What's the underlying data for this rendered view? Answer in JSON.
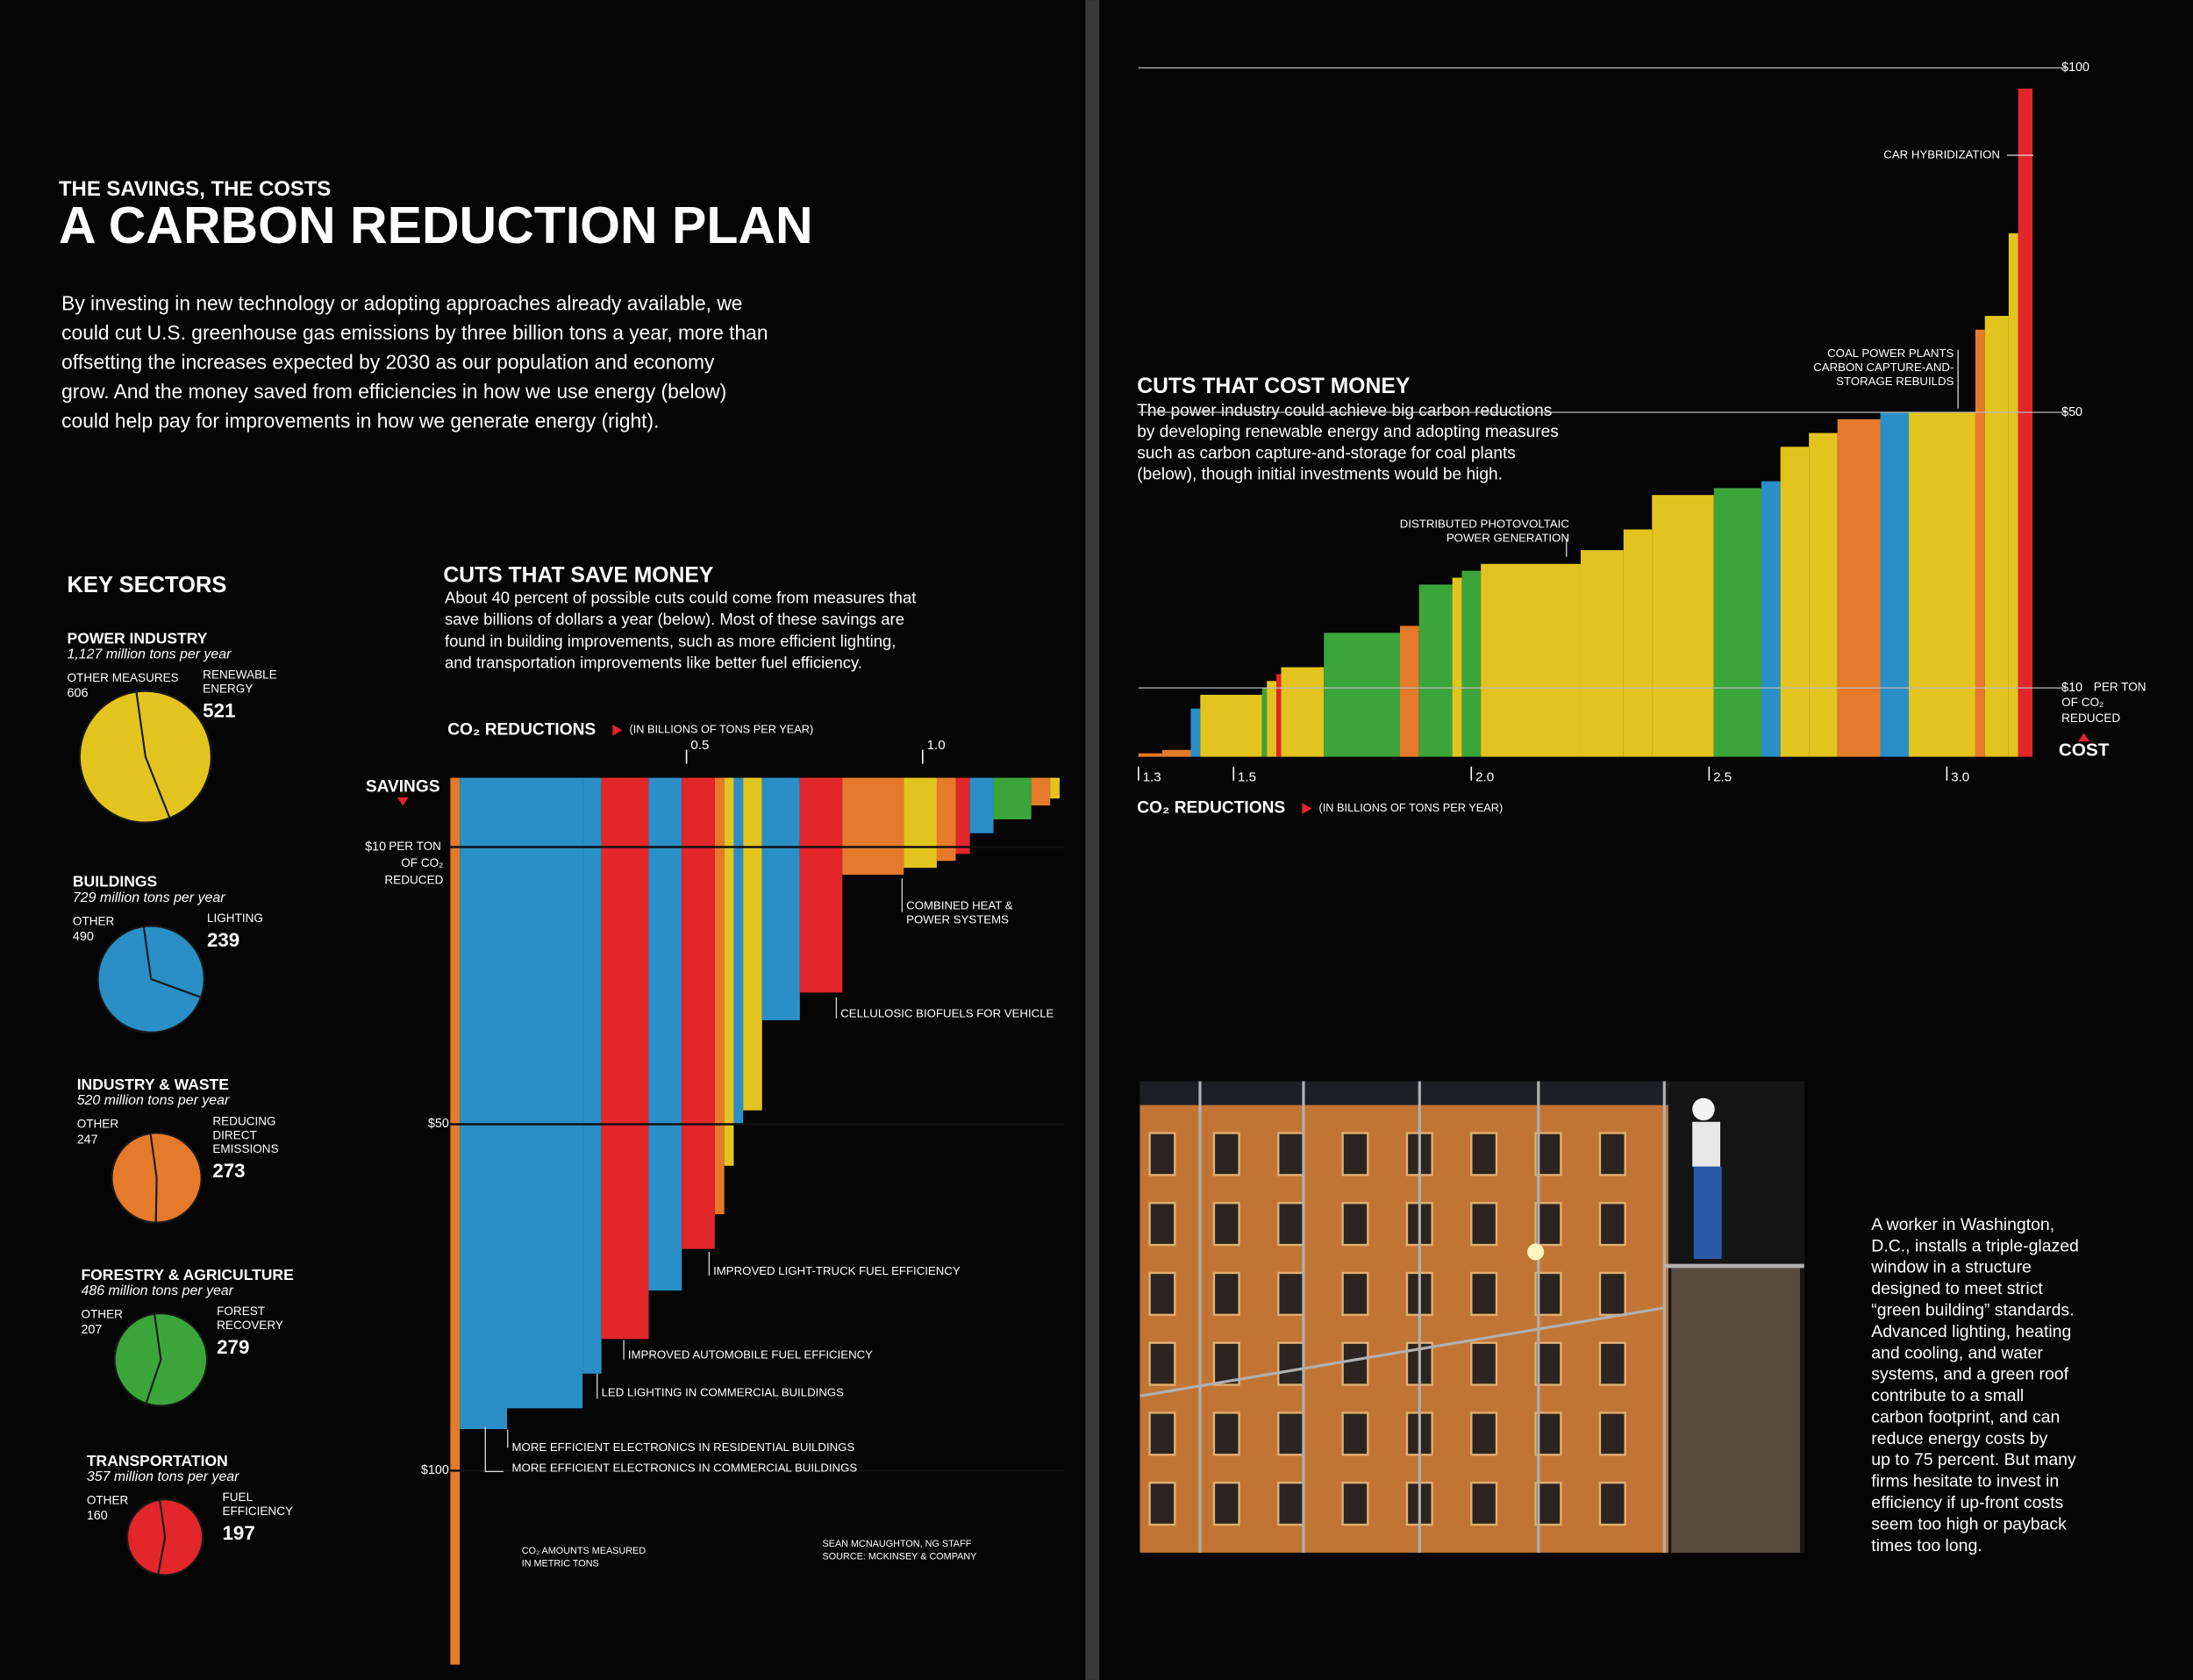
{
  "header": {
    "kicker": "THE SAVINGS, THE COSTS",
    "title": "A CARBON REDUCTION PLAN",
    "intro": [
      "By investing in new technology or adopting approaches already available, we",
      "could cut U.S. greenhouse gas emissions by three billion tons a year, more than",
      "offsetting the increases expected by 2030 as our population and economy",
      "grow. And the money saved from efficiencies in how we use energy (below)",
      "could help pay for improvements in how we generate energy (right)."
    ]
  },
  "key_sectors_title": "KEY SECTORS",
  "chart_data": [
    {
      "type": "pie",
      "title": "POWER INDUSTRY",
      "subtitle": "1,127 million tons per year",
      "categories": [
        [
          "OTHER MEASURES"
        ],
        [
          "RENEWABLE",
          "ENERGY"
        ]
      ],
      "values": [
        606,
        521
      ],
      "color": "#e3c41f"
    },
    {
      "type": "pie",
      "title": "BUILDINGS",
      "subtitle": "729 million tons per year",
      "categories": [
        [
          "OTHER"
        ],
        [
          "LIGHTING"
        ]
      ],
      "values": [
        490,
        239
      ],
      "color": "#2a8fc6"
    },
    {
      "type": "pie",
      "title": "INDUSTRY & WASTE",
      "subtitle": "520 million tons per year",
      "categories": [
        [
          "OTHER"
        ],
        [
          "REDUCING",
          "DIRECT",
          "EMISSIONS"
        ]
      ],
      "values": [
        247,
        273
      ],
      "color": "#e57a2a"
    },
    {
      "type": "pie",
      "title": "FORESTRY & AGRICULTURE",
      "subtitle": "486 million tons per year",
      "categories": [
        [
          "OTHER"
        ],
        [
          "FOREST",
          "RECOVERY"
        ]
      ],
      "values": [
        207,
        279
      ],
      "color": "#3ba53a"
    },
    {
      "type": "pie",
      "title": "TRANSPORTATION",
      "subtitle": "357 million tons per year",
      "categories": [
        [
          "OTHER"
        ],
        [
          "FUEL",
          "EFFICIENCY"
        ]
      ],
      "values": [
        160,
        197
      ],
      "color": "#e3262a"
    },
    {
      "type": "variable-width-bar",
      "title": "CUTS THAT SAVE MONEY",
      "description": [
        "About 40 percent of possible cuts could come from measures that",
        "save billions of dollars a year (below). Most of these savings are",
        "found in building improvements, such as more efficient lighting,",
        "and transportation improvements like better fuel efficiency."
      ],
      "x_label": "CO₂ REDUCTIONS",
      "x_label_note": "(IN BILLIONS OF TONS PER YEAR)",
      "y_label": "SAVINGS",
      "ytick_note": [
        "PER TON",
        "OF CO₂",
        "REDUCED"
      ],
      "xlim": [
        0,
        1.3
      ],
      "xticks": [
        0.5,
        {
          "value": 1,
          "label": "1.0"
        }
      ],
      "ylim": [
        0,
        130
      ],
      "yticks": [
        {
          "value": 10,
          "label": "$10"
        },
        {
          "value": 50,
          "label": "$50"
        },
        {
          "value": 100,
          "label": "$100"
        }
      ],
      "widths": [
        0.02,
        0.1,
        0.16,
        0.04,
        0.1,
        0.07,
        0.07,
        0.02,
        0.02,
        0.02,
        0.04,
        0.08,
        0.09,
        0.13,
        0.07,
        0.04,
        0.03,
        0.05,
        0.08,
        0.04,
        0.02
      ],
      "values": [
        128,
        94,
        91,
        86,
        81,
        74,
        68,
        63,
        56,
        50,
        48,
        35,
        31,
        14,
        13,
        12,
        11,
        8,
        6,
        4,
        3
      ],
      "colors": [
        "#e57a2a",
        "#2a8fc6",
        "#2a8fc6",
        "#2a8fc6",
        "#e3262a",
        "#2a8fc6",
        "#e3262a",
        "#e57a2a",
        "#e3c41f",
        "#2a8fc6",
        "#e3c41f",
        "#2a8fc6",
        "#e3262a",
        "#e57a2a",
        "#e3c41f",
        "#e57a2a",
        "#e3262a",
        "#2a8fc6",
        "#3ba53a",
        "#e57a2a",
        "#e3c41f"
      ],
      "annotations": [
        [
          "COMBINED HEAT &",
          "POWER SYSTEMS"
        ],
        [
          "CELLULOSIC BIOFUELS FOR VEHICLE"
        ],
        [
          "IMPROVED LIGHT-TRUCK FUEL EFFICIENCY"
        ],
        [
          "IMPROVED AUTOMOBILE FUEL EFFICIENCY"
        ],
        [
          "LED LIGHTING IN COMMERCIAL BUILDINGS"
        ],
        [
          "MORE EFFICIENT ELECTRONICS IN RESIDENTIAL BUILDINGS"
        ],
        [
          "MORE EFFICIENT ELECTRONICS IN COMMERCIAL BUILDINGS"
        ]
      ],
      "footnote": [
        "CO₂ AMOUNTS MEASURED",
        "IN METRIC TONS"
      ],
      "credits": [
        "SEAN MCNAUGHTON, NG STAFF",
        "SOURCE: MCKINSEY & COMPANY"
      ]
    },
    {
      "type": "variable-width-bar",
      "title": "CUTS THAT COST MONEY",
      "description": [
        "The power industry could achieve big carbon reductions",
        "by developing renewable energy and adopting measures",
        "such as carbon capture-and-storage for coal plants",
        "(below), though initial investments would be high."
      ],
      "x_label": "CO₂ REDUCTIONS",
      "x_label_note": "(IN BILLIONS OF TONS PER YEAR)",
      "y_label": "COST",
      "ytick_note": [
        "PER TON",
        "OF CO₂",
        "REDUCED"
      ],
      "xlim": [
        1.3,
        3.25
      ],
      "xticks": [
        1.3,
        1.5,
        {
          "value": 2,
          "label": "2.0"
        },
        2.5,
        {
          "value": 3,
          "label": "3.0"
        }
      ],
      "ylim": [
        0,
        100
      ],
      "yticks": [
        {
          "value": 10,
          "label": "$10"
        },
        {
          "value": 50,
          "label": "$50"
        },
        {
          "value": 100,
          "label": "$100"
        }
      ],
      "widths": [
        0.05,
        0.06,
        0.02,
        0.13,
        0.01,
        0.02,
        0.01,
        0.09,
        0.16,
        0.04,
        0.07,
        0.02,
        0.04,
        0.21,
        0.09,
        0.06,
        0.13,
        0.1,
        0.04,
        0.06,
        0.06,
        0.09,
        0.06,
        0.14,
        0.02,
        0.05,
        0.02,
        0.03
      ],
      "values": [
        0.5,
        1,
        7,
        9,
        10,
        11,
        12,
        13,
        18,
        19,
        25,
        26,
        27,
        28,
        30,
        33,
        38,
        39,
        40,
        45,
        47,
        49,
        50,
        50,
        62,
        64,
        76,
        97
      ],
      "colors": [
        "#e57a2a",
        "#e57a2a",
        "#2a8fc6",
        "#e3c41f",
        "#3ba53a",
        "#e3c41f",
        "#e3262a",
        "#e3c41f",
        "#3ba53a",
        "#e57a2a",
        "#3ba53a",
        "#e3c41f",
        "#3ba53a",
        "#e3c41f",
        "#e3c41f",
        "#e3c41f",
        "#e3c41f",
        "#3ba53a",
        "#2a8fc6",
        "#e3c41f",
        "#e3c41f",
        "#e57a2a",
        "#2a8fc6",
        "#e3c41f",
        "#e57a2a",
        "#e3c41f",
        "#e3c41f",
        "#e3262a"
      ],
      "annotations": [
        [
          "CAR HYBRIDIZATION"
        ],
        [
          "COAL POWER PLANTS",
          "CARBON CAPTURE-AND-",
          "STORAGE REBUILDS"
        ],
        [
          "DISTRIBUTED PHOTOVOLTAIC",
          "POWER GENERATION"
        ]
      ]
    }
  ],
  "photo_caption": [
    "A worker in Washington,",
    "D.C., installs a triple-glazed",
    "window in a structure",
    "designed to meet strict",
    "“green building” standards.",
    "Advanced lighting, heating",
    "and cooling, and water",
    "systems, and a green roof",
    "contribute to a small",
    "carbon footprint, and can",
    "reduce energy costs by",
    "up to 75 percent. But many",
    "firms hesitate to invest in",
    "efficiency if up-front costs",
    "seem too high or payback",
    "times too long."
  ]
}
